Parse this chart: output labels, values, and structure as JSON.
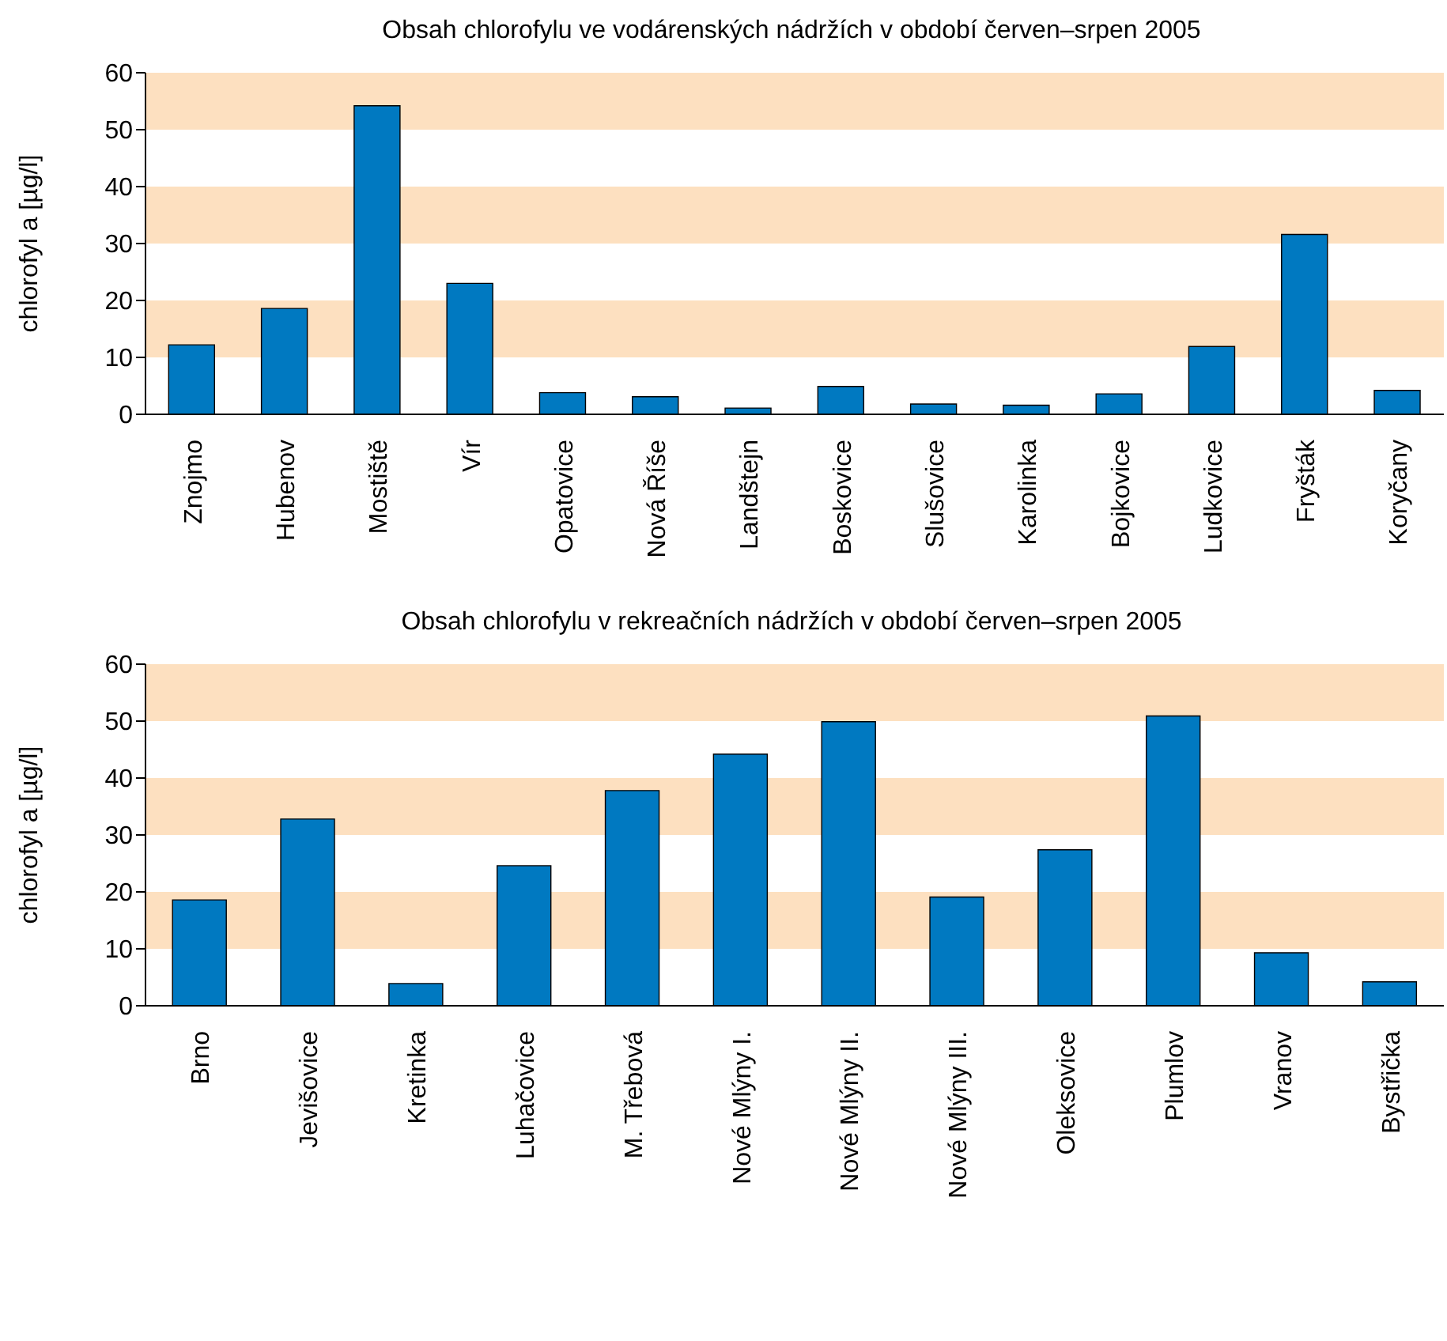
{
  "chart_data": [
    {
      "type": "bar",
      "title": "Obsah chlorofylu ve vodárenských nádržích v období červen–srpen 2005",
      "ylabel": "chlorofyl a [µg/l]",
      "categories": [
        "Znojmo",
        "Hubenov",
        "Mostiště",
        "Vír",
        "Opatovice",
        "Nová Říše",
        "Landštejn",
        "Boskovice",
        "Slušovice",
        "Karolinka",
        "Bojkovice",
        "Ludkovice",
        "Fryšták",
        "Koryčany"
      ],
      "values": [
        12.2,
        18.6,
        54.2,
        23,
        3.8,
        3.1,
        1.1,
        4.9,
        1.8,
        1.6,
        3.6,
        11.9,
        31.6,
        4.2
      ],
      "color": "#0079c1",
      "ylim": [
        0,
        60
      ],
      "yticks": [
        0,
        10,
        20,
        30,
        40,
        50,
        60
      ],
      "bands": [
        {
          "axis": "y",
          "from": 10,
          "to": 20,
          "color": "#fde0c0"
        },
        {
          "axis": "y",
          "from": 30,
          "to": 40,
          "color": "#fde0c0"
        },
        {
          "axis": "y",
          "from": 50,
          "to": 60,
          "color": "#fde0c0"
        }
      ]
    },
    {
      "type": "bar",
      "title": "Obsah chlorofylu v rekreačních nádržích v období červen–srpen 2005",
      "ylabel": "chlorofyl a [µg/l]",
      "categories": [
        "Brno",
        "Jevišovice",
        "Kretinka",
        "Luhačovice",
        "M. Třebová",
        "Nové Mlýny I.",
        "Nové Mlýny II.",
        "Nové Mlýny III.",
        "Oleksovice",
        "Plumlov",
        "Vranov",
        "Bystřička"
      ],
      "values": [
        18.6,
        32.8,
        3.9,
        24.6,
        37.8,
        44.2,
        49.9,
        19.1,
        27.4,
        50.9,
        9.3,
        4.2
      ],
      "color": "#0079c1",
      "ylim": [
        0,
        60
      ],
      "yticks": [
        0,
        10,
        20,
        30,
        40,
        50,
        60
      ],
      "bands": [
        {
          "axis": "y",
          "from": 10,
          "to": 20,
          "color": "#fde0c0"
        },
        {
          "axis": "y",
          "from": 30,
          "to": 40,
          "color": "#fde0c0"
        },
        {
          "axis": "y",
          "from": 50,
          "to": 60,
          "color": "#fde0c0"
        }
      ]
    }
  ]
}
